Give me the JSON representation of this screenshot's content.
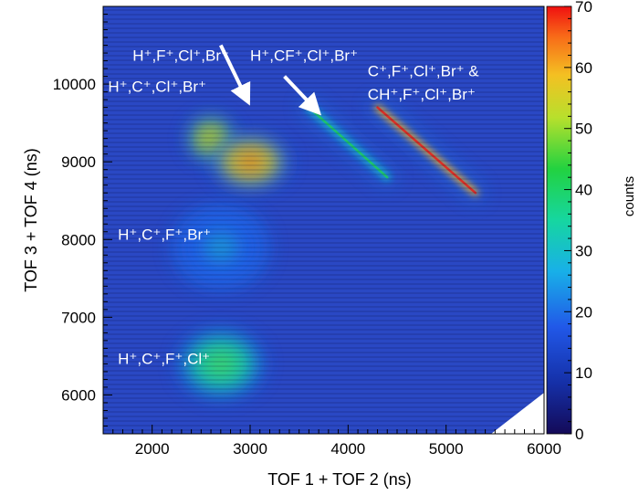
{
  "chart_data": {
    "type": "heatmap",
    "title": "",
    "xlabel": "TOF 1 + TOF 2 (ns)",
    "ylabel": "TOF 3 + TOF 4 (ns)",
    "colorbar_label": "counts",
    "xlim": [
      1500,
      6000
    ],
    "ylim": [
      5500,
      11000
    ],
    "zlim": [
      0,
      70
    ],
    "x_ticks": [
      2000,
      3000,
      4000,
      5000,
      6000
    ],
    "y_ticks": [
      6000,
      7000,
      8000,
      9000,
      10000
    ],
    "z_ticks": [
      0,
      10,
      20,
      30,
      40,
      50,
      60,
      70
    ],
    "background_counts": 8,
    "islands": [
      {
        "name": "H+,C+,F+,Cl+",
        "x": 2700,
        "y": 6400,
        "x_width": 900,
        "y_width": 900,
        "peak_counts": 35
      },
      {
        "name": "H+,C+,F+,Br+",
        "x": 2700,
        "y": 7900,
        "x_width": 1000,
        "y_width": 1100,
        "peak_counts": 18
      },
      {
        "name": "H+,C+,Cl+,Br+",
        "x": 2600,
        "y": 9300,
        "x_width": 500,
        "y_width": 600,
        "peak_counts": 50
      },
      {
        "name": "H+,F+,Cl+,Br+",
        "x": 3000,
        "y": 9000,
        "x_width": 800,
        "y_width": 700,
        "peak_counts": 55
      },
      {
        "name": "H+,CF+,Cl+,Br+",
        "x_start": 3600,
        "y_start": 9700,
        "x_end": 4400,
        "y_end": 8800,
        "peak_counts": 30
      },
      {
        "name": "C+,F+,Cl+,Br+ & CH+,F+,Cl+,Br+",
        "x_start": 4300,
        "y_start": 9700,
        "x_end": 5300,
        "y_end": 8600,
        "peak_counts": 60
      }
    ],
    "annotations": [
      {
        "text": "H⁺,F⁺,Cl⁺,Br⁺",
        "x": 1800,
        "y": 10300
      },
      {
        "text": "H⁺,C⁺,Cl⁺,Br⁺",
        "x": 1550,
        "y": 9900
      },
      {
        "text": "H⁺,CF⁺,Cl⁺,Br⁺",
        "x": 3000,
        "y": 10300
      },
      {
        "text": "C⁺,F⁺,Cl⁺,Br⁺ &",
        "x": 4200,
        "y": 10100
      },
      {
        "text": "CH⁺,F⁺,Cl⁺,Br⁺",
        "x": 4200,
        "y": 9800
      },
      {
        "text": "H⁺,C⁺,F⁺,Br⁺",
        "x": 1650,
        "y": 8000
      },
      {
        "text": "H⁺,C⁺,F⁺,Cl⁺",
        "x": 1650,
        "y": 6400
      }
    ],
    "arrows": [
      {
        "from_x": 2700,
        "from_y": 10500,
        "to_x": 2950,
        "to_y": 9850
      },
      {
        "from_x": 3350,
        "from_y": 10100,
        "to_x": 3650,
        "to_y": 9700
      }
    ]
  }
}
